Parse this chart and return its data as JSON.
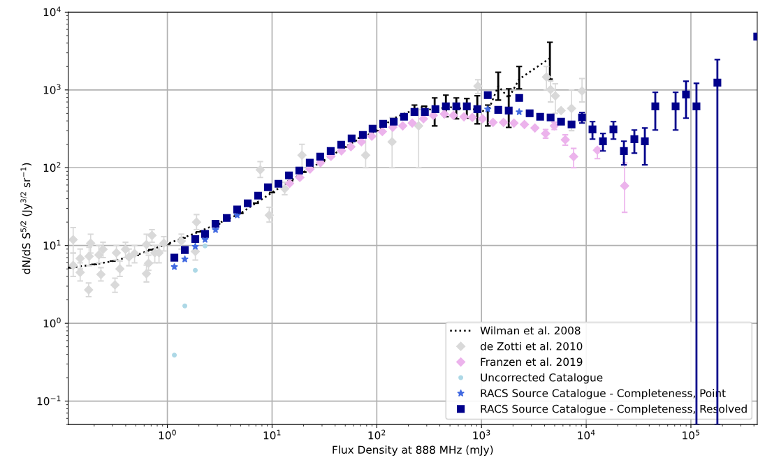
{
  "chart_data": {
    "type": "scatter",
    "xlabel": "Flux Density at 888 MHz (mJy)",
    "ylabel": "dN/dS S$^{5/2}$ (Jy$^{3/2}$ sr$^{−1}$)",
    "log": "xy",
    "grid": true,
    "legend": "bottom right",
    "xlim": [
      0.113,
      430000
    ],
    "ylim": [
      0.05,
      10000
    ],
    "xticks": [
      {
        "value": 1,
        "label": "10$^{0}$"
      },
      {
        "value": 10,
        "label": "10$^{1}$"
      },
      {
        "value": 100,
        "label": "10$^{2}$"
      },
      {
        "value": 1000,
        "label": "10$^{3}$"
      },
      {
        "value": 10000,
        "label": "10$^{4}$"
      },
      {
        "value": 100000,
        "label": "10$^{5}$"
      }
    ],
    "yticks": [
      {
        "value": 0.1,
        "label": "10$^{−1}$"
      },
      {
        "value": 1,
        "label": "10$^{0}$"
      },
      {
        "value": 10,
        "label": "10$^{1}$"
      },
      {
        "value": 100,
        "label": "10$^{2}$"
      },
      {
        "value": 1000,
        "label": "10$^{3}$"
      },
      {
        "value": 10000,
        "label": "10$^{4}$"
      }
    ],
    "series": [
      {
        "name": "Wilman et al. 2008",
        "type": "line",
        "color": "#000000",
        "marker": "none",
        "line_style": "dotted",
        "x": [
          0.12,
          0.2,
          0.3,
          0.5,
          0.7,
          1.0,
          1.4,
          2,
          3,
          5,
          7,
          10,
          15,
          20,
          30,
          50,
          70,
          100,
          142,
          179,
          229,
          284,
          357,
          457,
          575,
          724,
          912,
          1148,
          1445,
          1820,
          2291,
          4500
        ],
        "values": [
          5.2,
          5.7,
          6.3,
          7.5,
          8.8,
          10.5,
          12.5,
          15,
          19,
          26,
          35,
          48,
          68,
          88,
          120,
          185,
          240,
          300,
          425,
          490,
          555,
          617,
          521,
          617,
          578,
          578,
          555,
          521,
          1120,
          789,
          1377,
          2560
        ],
        "errors": [
          null,
          null,
          null,
          null,
          null,
          null,
          null,
          null,
          null,
          null,
          null,
          null,
          null,
          null,
          null,
          null,
          null,
          null,
          null,
          null,
          [
            490,
            640
          ],
          null,
          [
            345,
            789
          ],
          [
            452,
            857
          ],
          [
            425,
            789
          ],
          [
            434,
            775
          ],
          [
            367,
            843
          ],
          [
            345,
            640
          ],
          [
            740,
            1690
          ],
          [
            330,
            1034
          ],
          [
            1034,
            2000
          ],
          [
            1377,
            4110
          ]
        ]
      },
      {
        "name": "de Zotti et al. 2010",
        "color": "#d9d9d9",
        "marker": "diamond",
        "x": [
          0.126,
          0.126,
          0.147,
          0.147,
          0.177,
          0.185,
          0.179,
          0.222,
          0.232,
          0.243,
          0.316,
          0.326,
          0.352,
          0.398,
          0.43,
          0.486,
          0.631,
          0.631,
          0.661,
          0.713,
          0.759,
          0.832,
          0.926,
          1.36,
          1.85,
          1.9,
          7.71,
          9.4,
          13.2,
          19.3,
          78.3,
          140,
          251,
          924,
          4170,
          4571,
          5070,
          5754,
          7244,
          9120
        ],
        "values": [
          11.9,
          5.55,
          6.82,
          4.52,
          2.69,
          10.7,
          7.26,
          7.57,
          4.25,
          8.93,
          3.11,
          8.05,
          5.01,
          8.93,
          7.11,
          7.88,
          10.3,
          4.34,
          5.9,
          13.5,
          8.05,
          8.05,
          10.7,
          11.4,
          8.39,
          20,
          94,
          24.5,
          53.8,
          145,
          145,
          215,
          345,
          1120,
          1466,
          1010,
          839,
          543,
          578,
          970
        ],
        "errors": [
          [
            8,
            17
          ],
          [
            4,
            8
          ],
          [
            5,
            9
          ],
          [
            3.5,
            6
          ],
          [
            2.2,
            3.3
          ],
          [
            8,
            14
          ],
          [
            5.5,
            9.5
          ],
          [
            6,
            10
          ],
          [
            3.5,
            5.2
          ],
          [
            7,
            11
          ],
          [
            2.5,
            3.8
          ],
          [
            6.5,
            10
          ],
          [
            4,
            6.3
          ],
          [
            7,
            11
          ],
          [
            5.5,
            9
          ],
          [
            6,
            10
          ],
          [
            8,
            14
          ],
          [
            3.4,
            5.6
          ],
          [
            4.8,
            7.5
          ],
          [
            11,
            16
          ],
          [
            6,
            10
          ],
          [
            6,
            10
          ],
          [
            8.5,
            13
          ],
          [
            9,
            14
          ],
          [
            6.5,
            11
          ],
          [
            16,
            25
          ],
          [
            75,
            120
          ],
          [
            20,
            31
          ],
          [
            45,
            65
          ],
          [
            100,
            200
          ],
          [
            100,
            260
          ],
          [
            100,
            440
          ],
          [
            100,
            560
          ],
          [
            900,
            1350
          ],
          [
            1000,
            2000
          ],
          [
            700,
            1300
          ],
          [
            500,
            1200
          ],
          null,
          [
            300,
            1000
          ],
          [
            700,
            1400
          ]
        ]
      },
      {
        "name": "Franzen et al. 2019",
        "color": "#ecb3ec",
        "marker": "diamond",
        "x": [
          14.7,
          18.4,
          23,
          29,
          36.5,
          46,
          56.6,
          71.3,
          89.6,
          113,
          142,
          177,
          218,
          279,
          347,
          442,
          540,
          680,
          818,
          1023,
          1288,
          1622,
          2042,
          2570,
          3236,
          4095,
          4955,
          6310,
          7586,
          12790,
          23280
        ],
        "values": [
          63,
          75,
          96,
          116,
          140,
          165,
          186,
          215,
          254,
          292,
          331,
          345,
          375,
          425,
          471,
          491,
          471,
          452,
          443,
          425,
          383,
          383,
          375,
          360,
          324,
          275,
          345,
          229,
          139,
          168,
          58.5
        ],
        "errors": [
          null,
          null,
          null,
          null,
          null,
          null,
          null,
          null,
          null,
          null,
          null,
          null,
          null,
          null,
          null,
          null,
          null,
          null,
          null,
          null,
          null,
          null,
          null,
          null,
          null,
          [
            240,
            310
          ],
          [
            310,
            385
          ],
          [
            195,
            265
          ],
          [
            100,
            177
          ],
          [
            131,
            177
          ],
          [
            26.7,
            115
          ]
        ]
      },
      {
        "name": "Uncorrected Catalogue",
        "color": "#add8e6",
        "marker": "circle",
        "x": [
          1.166,
          1.468,
          1.848,
          2.291
        ],
        "values": [
          0.39,
          1.67,
          4.8,
          9.9
        ]
      },
      {
        "name": "RACS Source Catalogue - Completeness, Point",
        "color": "#4169e1",
        "marker": "star",
        "x": [
          1.166,
          1.468,
          1.848,
          2.291,
          2.884,
          4.64,
          1148,
          2291
        ],
        "values": [
          5.32,
          6.68,
          9.7,
          11.9,
          15.9,
          24.5,
          566,
          521
        ]
      },
      {
        "name": "RACS Source Catalogue - Completeness, Resolved",
        "color": "#00008b",
        "marker": "square",
        "x": [
          1.166,
          1.468,
          1.848,
          2.291,
          2.884,
          3.69,
          4.64,
          5.85,
          7.36,
          9.12,
          11.5,
          14.5,
          18.2,
          22.9,
          28.8,
          36.3,
          45.7,
          57.5,
          73.6,
          91.2,
          115,
          145,
          182,
          229,
          288,
          363,
          457,
          575,
          724,
          912,
          1148,
          1445,
          1820,
          2291,
          2884,
          3631,
          4571,
          5754,
          7244,
          9120,
          11482,
          14454,
          18197,
          22909,
          28840,
          36308,
          45709,
          71400,
          89800,
          113000,
          179000,
          430000
        ],
        "values": [
          6.97,
          8.75,
          12.1,
          14.1,
          19.0,
          22.6,
          29.0,
          34.9,
          43.8,
          56.1,
          62.2,
          79.6,
          92.0,
          116,
          139,
          164,
          198,
          238,
          264,
          318,
          367,
          391,
          452,
          521,
          521,
          566,
          615,
          615,
          615,
          566,
          857,
          555,
          543,
          789,
          501,
          452,
          443,
          391,
          360,
          443,
          311,
          219,
          311,
          164,
          233,
          219,
          615,
          615,
          874,
          615,
          1242,
          4850
        ],
        "errors": [
          null,
          null,
          null,
          null,
          null,
          null,
          null,
          null,
          null,
          null,
          null,
          null,
          null,
          null,
          null,
          null,
          null,
          null,
          null,
          null,
          null,
          null,
          null,
          null,
          null,
          null,
          null,
          null,
          null,
          null,
          null,
          null,
          null,
          null,
          null,
          null,
          null,
          null,
          null,
          [
            375,
            512
          ],
          [
            233,
            391
          ],
          [
            164,
            275
          ],
          [
            233,
            391
          ],
          [
            109,
            219
          ],
          [
            154,
            305
          ],
          [
            109,
            324
          ],
          [
            305,
            931
          ],
          [
            305,
            931
          ],
          [
            434,
            1294
          ],
          [
            0.05,
            1216
          ],
          [
            0.05,
            2455
          ],
          null
        ]
      }
    ]
  }
}
